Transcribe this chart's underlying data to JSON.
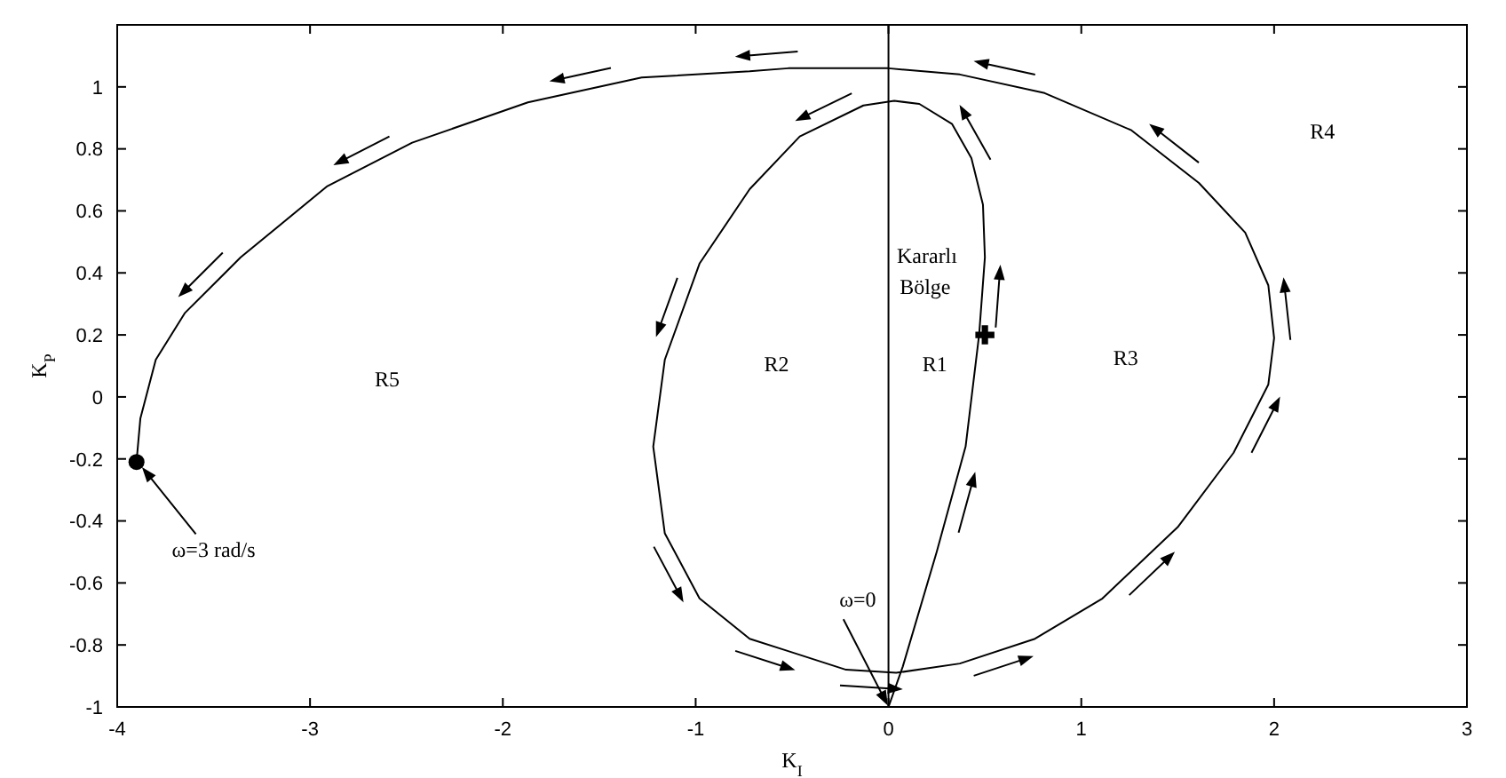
{
  "chart_data": {
    "type": "line",
    "xlabel": "K$_{I}$",
    "ylabel": "K$_{P}$",
    "xlim": [
      -4,
      3
    ],
    "ylim": [
      -1,
      1.2
    ],
    "xticks": [
      -4,
      -3,
      -2,
      -1,
      0,
      1,
      2,
      3
    ],
    "yticks": [
      -1,
      -0.8,
      -0.6,
      -0.4,
      -0.2,
      0,
      0.2,
      0.4,
      0.6,
      0.8,
      1
    ],
    "series": [
      {
        "color": "#000000",
        "x": [
          0,
          0.074,
          0.25,
          0.4,
          0.47,
          0.5,
          0.49,
          0.43,
          0.33,
          0.16,
          0.03,
          -0.13,
          -0.46,
          -0.72,
          -0.98,
          -1.16,
          -1.22,
          -1.16,
          -0.98,
          -0.72,
          -0.52,
          -0.22,
          0.04,
          0.37,
          0.76,
          1.11,
          1.5,
          1.79,
          1.97,
          2.0,
          1.97,
          1.85,
          1.61,
          1.26,
          0.81,
          0.37,
          0,
          -0.52,
          -0.72,
          -1.28,
          -1.87,
          -2.47,
          -2.91,
          -3.36,
          -3.65,
          -3.8,
          -3.88,
          -3.9
        ],
        "values": [
          -1,
          -0.87,
          -0.5,
          -0.16,
          0.2,
          0.45,
          0.62,
          0.77,
          0.88,
          0.945,
          0.955,
          0.94,
          0.84,
          0.67,
          0.43,
          0.12,
          -0.16,
          -0.44,
          -0.65,
          -0.78,
          -0.82,
          -0.88,
          -0.89,
          -0.86,
          -0.78,
          -0.65,
          -0.42,
          -0.18,
          0.04,
          0.19,
          0.36,
          0.53,
          0.69,
          0.86,
          0.98,
          1.04,
          1.06,
          1.06,
          1.05,
          1.03,
          0.95,
          0.82,
          0.68,
          0.45,
          0.27,
          0.12,
          -0.07,
          -0.21
        ]
      },
      {
        "type": "scatter",
        "color": "#000000",
        "marker": "circle",
        "x": [
          -3.9
        ],
        "values": [
          -0.21
        ]
      },
      {
        "type": "scatter",
        "color": "#000000",
        "marker": "cross",
        "x": [
          0.5
        ],
        "values": [
          0.2
        ]
      }
    ],
    "ref_lines": [
      {
        "axis": "x",
        "value": 0,
        "color": "#000000"
      }
    ],
    "annotations": [
      "ω=3 rad/s",
      "ω=0",
      "R5",
      "R2",
      "R1",
      "R3",
      "R4",
      "Kararlı",
      "Bölge"
    ]
  }
}
